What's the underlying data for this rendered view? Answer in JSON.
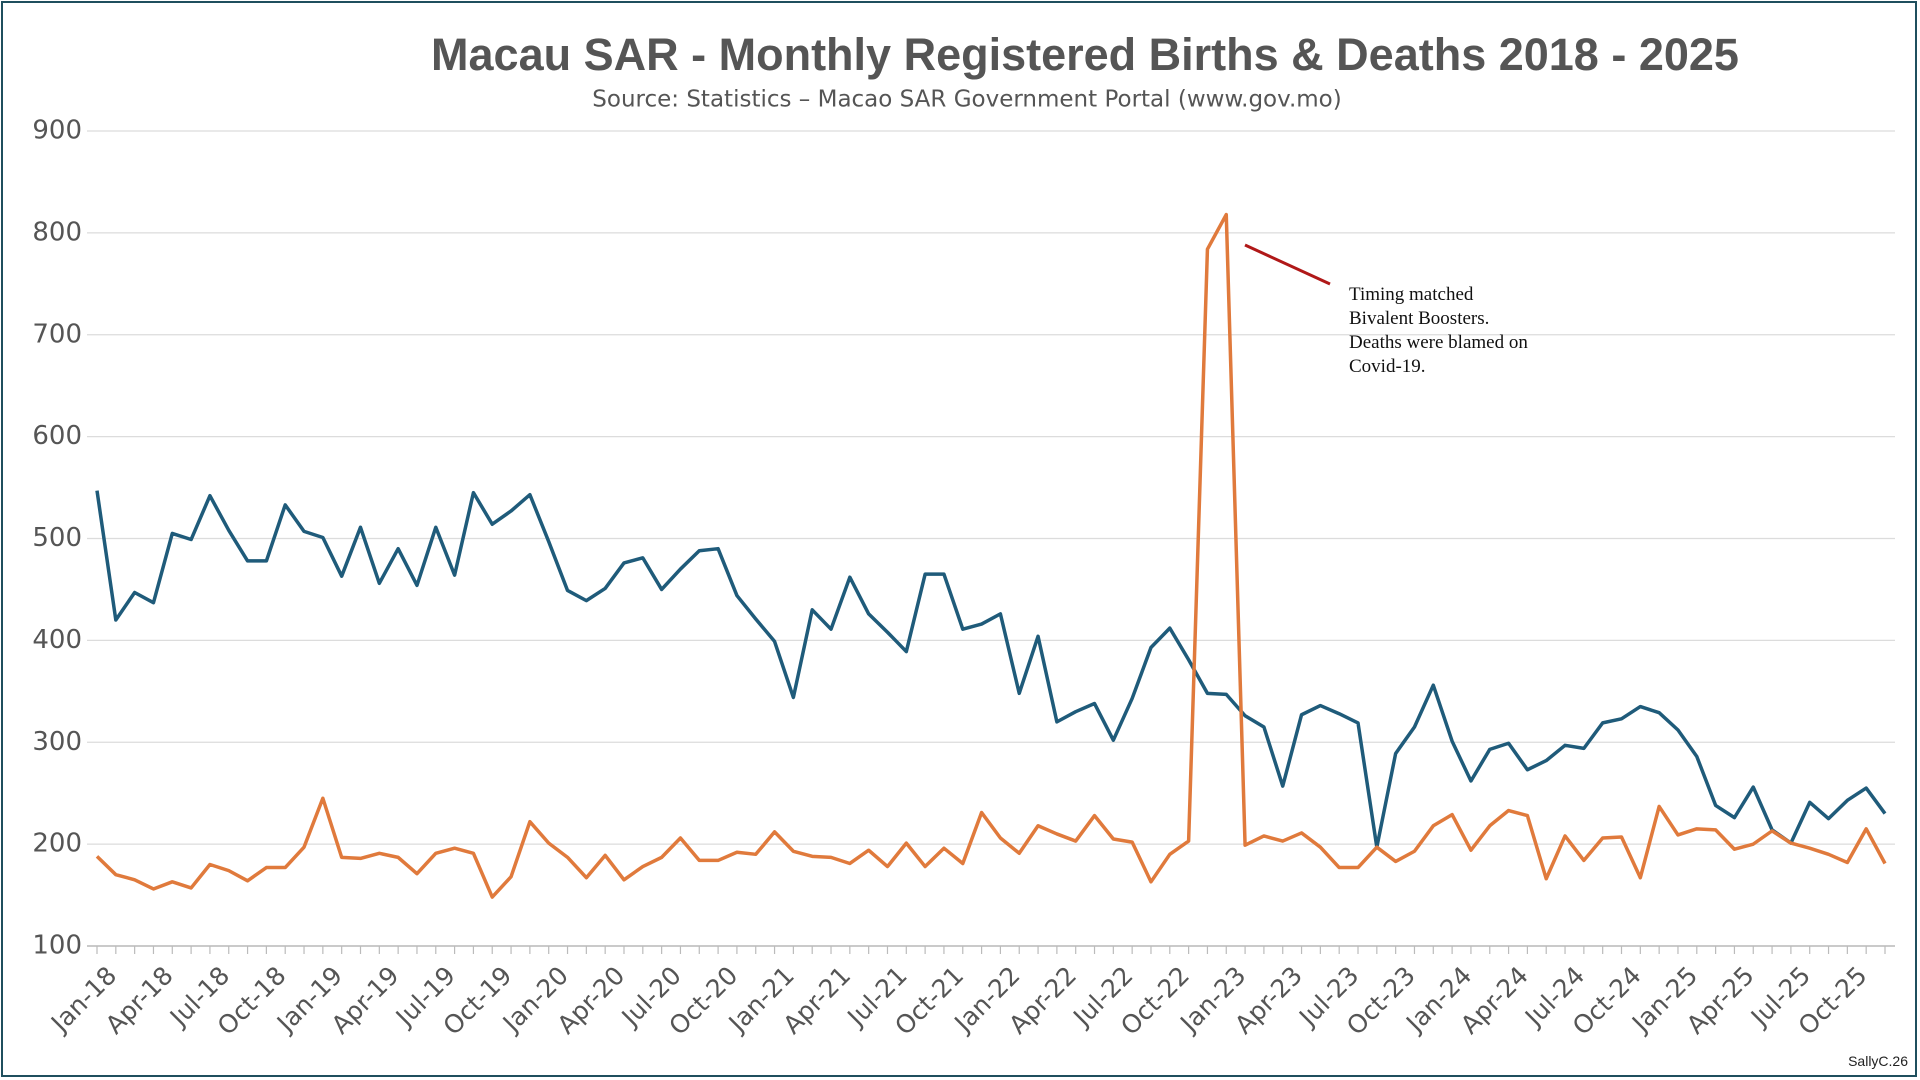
{
  "chart_data": {
    "type": "line",
    "title": "Macau SAR - Monthly Registered Births & Deaths 2018 -  2025",
    "subtitle": "Source: Statistics – Macao SAR Government Portal (www.gov.mo)",
    "annotation": [
      "Timing matched",
      "Bivalent Boosters.",
      "Deaths were blamed on",
      "Covid-19."
    ],
    "signature": "SallyC.26",
    "categories": [
      "Jan-18",
      null,
      null,
      "Apr-18",
      null,
      null,
      "Jul-18",
      null,
      null,
      "Oct-18",
      null,
      null,
      "Jan-19",
      null,
      null,
      "Apr-19",
      null,
      null,
      "Jul-19",
      null,
      null,
      "Oct-19",
      null,
      null,
      "Jan-20",
      null,
      null,
      "Apr-20",
      null,
      null,
      "Jul-20",
      null,
      null,
      "Oct-20",
      null,
      null,
      "Jan-21",
      null,
      null,
      "Apr-21",
      null,
      null,
      "Jul-21",
      null,
      null,
      "Oct-21",
      null,
      null,
      "Jan-22",
      null,
      null,
      "Apr-22",
      null,
      null,
      "Jul-22",
      null,
      null,
      "Oct-22",
      null,
      null,
      "Jan-23",
      null,
      null,
      "Apr-23",
      null,
      null,
      "Jul-23",
      null,
      null,
      "Oct-23",
      null,
      null,
      "Jan-24",
      null,
      null,
      "Apr-24",
      null,
      null,
      "Jul-24",
      null,
      null,
      "Oct-24",
      null,
      null,
      "Jan-25",
      null,
      null,
      "Apr-25",
      null,
      null,
      "Jul-25",
      null,
      null,
      "Oct-25",
      null,
      null
    ],
    "series": [
      {
        "color": "#1f5b7a",
        "values": [
          547,
          420,
          447,
          437,
          505,
          499,
          542,
          508,
          478,
          478,
          533,
          507,
          501,
          463,
          511,
          456,
          490,
          454,
          511,
          464,
          545,
          514,
          527,
          543,
          497,
          449,
          439,
          451,
          476,
          481,
          450,
          470,
          488,
          490,
          444,
          421,
          399,
          344,
          430,
          411,
          462,
          426,
          408,
          389,
          465,
          465,
          411,
          416,
          426,
          348,
          404,
          320,
          330,
          338,
          302,
          343,
          393,
          412,
          381,
          348,
          347,
          326,
          315,
          257,
          327,
          336,
          328,
          319,
          197,
          289,
          315,
          356,
          301,
          262,
          293,
          299,
          273,
          282,
          297,
          294,
          319,
          323,
          335,
          329,
          312,
          286,
          238,
          226,
          256,
          214,
          201,
          241,
          225,
          243,
          255,
          230
        ]
      },
      {
        "color": "#e07a3c",
        "values": [
          188,
          170,
          165,
          156,
          163,
          157,
          180,
          174,
          164,
          177,
          177,
          197,
          245,
          187,
          186,
          191,
          187,
          171,
          191,
          196,
          191,
          148,
          168,
          222,
          201,
          187,
          167,
          189,
          165,
          178,
          187,
          206,
          184,
          184,
          192,
          190,
          212,
          193,
          188,
          187,
          181,
          194,
          178,
          201,
          178,
          196,
          181,
          231,
          206,
          191,
          218,
          210,
          203,
          228,
          205,
          202,
          163,
          190,
          203,
          784,
          818,
          199,
          208,
          203,
          211,
          197,
          177,
          177,
          197,
          183,
          193,
          218,
          229,
          194,
          218,
          233,
          228,
          166,
          208,
          184,
          206,
          207,
          167,
          237,
          209,
          215,
          214,
          195,
          200,
          213,
          201,
          196,
          190,
          182,
          215,
          181
        ]
      }
    ],
    "ylim": [
      100,
      900
    ],
    "yticks": [
      100,
      200,
      300,
      400,
      500,
      600,
      700,
      800,
      900
    ],
    "grid": true
  }
}
